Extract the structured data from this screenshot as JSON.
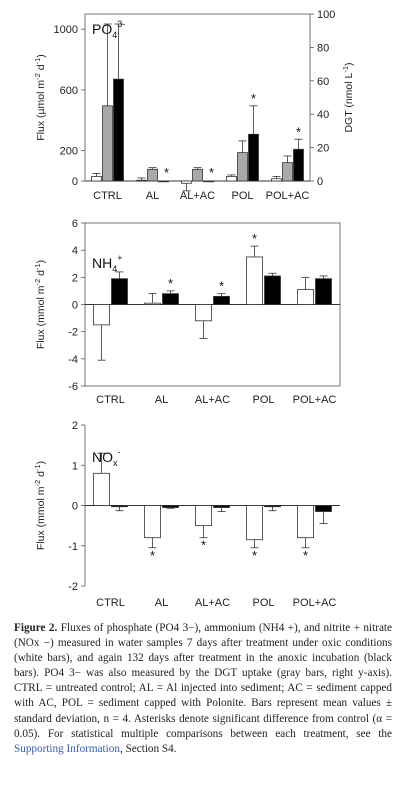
{
  "chart_data": [
    {
      "type": "bar",
      "id": "po4",
      "title": "PO4 3-",
      "title_base": "PO",
      "title_sub": "4",
      "title_sup": "3-",
      "categories": [
        "CTRL",
        "AL",
        "AL+AC",
        "POL",
        "POL+AC"
      ],
      "ylabel": "Flux (µmol m-2 d-1)",
      "ylabel_parts": [
        "Flux (µmol m",
        "-2",
        " d",
        "-1",
        ")"
      ],
      "ylim": [
        0,
        1100
      ],
      "yticks": [
        0,
        200,
        600,
        1000
      ],
      "y2label": "DGT (nmol L-1)",
      "y2label_parts": [
        "DGT (nmol L",
        "-1",
        ")"
      ],
      "y2lim": [
        0,
        100
      ],
      "y2ticks": [
        0,
        20,
        40,
        60,
        80,
        100
      ],
      "series": [
        {
          "values": [
            30,
            5,
            -15,
            30,
            15
          ],
          "errors": [
            20,
            15,
            50,
            10,
            15
          ],
          "color": "#ffffff",
          "axis": "left"
        },
        {
          "values": [
            45,
            7,
            7,
            17,
            11
          ],
          "errors": [
            49,
            1,
            1,
            7,
            4
          ],
          "color": "#a9a9a9",
          "axis": "right"
        },
        {
          "values": [
            61,
            0,
            0,
            28,
            19
          ],
          "errors": [
            33,
            0,
            0,
            17,
            6
          ],
          "color": "#000000",
          "axis": "right"
        }
      ],
      "asterisks": [
        {
          "category": 1,
          "series": 2
        },
        {
          "category": 2,
          "series": 2
        },
        {
          "category": 3,
          "series": 2
        },
        {
          "category": 4,
          "series": 2
        }
      ]
    },
    {
      "type": "bar",
      "id": "nh4",
      "title": "NH4+",
      "title_base": "NH",
      "title_sub": "4",
      "title_sup": "+",
      "categories": [
        "CTRL",
        "AL",
        "AL+AC",
        "POL",
        "POL+AC"
      ],
      "ylabel": "Flux (mmol m-2 d-1)",
      "ylabel_parts": [
        "Flux (mmol m",
        "-2",
        " d",
        "-1",
        ")"
      ],
      "ylim": [
        -6,
        6
      ],
      "yticks": [
        -6,
        -4,
        -2,
        0,
        2,
        4,
        6
      ],
      "series": [
        {
          "values": [
            -1.5,
            0.1,
            -1.2,
            3.5,
            1.1
          ],
          "errors": [
            2.6,
            0.7,
            1.3,
            0.8,
            0.9
          ],
          "color": "#ffffff"
        },
        {
          "values": [
            1.9,
            0.8,
            0.6,
            2.1,
            1.9
          ],
          "errors": [
            0.5,
            0.2,
            0.2,
            0.2,
            0.2
          ],
          "color": "#000000"
        }
      ],
      "asterisks": [
        {
          "category": 1,
          "series": 1
        },
        {
          "category": 2,
          "series": 1
        },
        {
          "category": 3,
          "series": 0
        }
      ]
    },
    {
      "type": "bar",
      "id": "nox",
      "title": "NOx-",
      "title_base": "NO",
      "title_sub": "x",
      "title_sup": "-",
      "categories": [
        "CTRL",
        "AL",
        "AL+AC",
        "POL",
        "POL+AC"
      ],
      "ylabel": "Flux (mmol m-2 d-1)",
      "ylabel_parts": [
        "Flux (mmol m",
        "-2",
        " d",
        "-1",
        ")"
      ],
      "ylim": [
        -2,
        2
      ],
      "yticks": [
        -2,
        -1,
        0,
        1,
        2
      ],
      "series": [
        {
          "values": [
            0.8,
            -0.8,
            -0.5,
            -0.85,
            -0.8
          ],
          "errors": [
            0.5,
            0.25,
            0.3,
            0.2,
            0.25
          ],
          "color": "#ffffff"
        },
        {
          "values": [
            -0.03,
            -0.05,
            -0.05,
            -0.03,
            -0.15
          ],
          "errors": [
            0.1,
            0.02,
            0.1,
            0.1,
            0.3
          ],
          "color": "#000000"
        }
      ],
      "asterisks": [
        {
          "category": 1,
          "series": 0
        },
        {
          "category": 2,
          "series": 0
        },
        {
          "category": 3,
          "series": 0
        },
        {
          "category": 4,
          "series": 0
        }
      ]
    }
  ],
  "caption": {
    "label": "Figure 2.",
    "text": "Fluxes of phosphate (PO4 3−), ammonium (NH4 +), and nitrite + nitrate (NOx −) measured in water samples 7 days after treatment under oxic conditions (white bars), and again 132 days after treatment in the anoxic incubation (black bars). PO4 3− was also measured by the DGT uptake (gray bars, right y-axis). CTRL = untreated control; AL = Al injected into sediment; AC = sediment capped with AC, POL = sediment capped with Polonite. Bars represent mean values ± standard deviation, n = 4. Asterisks denote significant difference from control (α = 0.05). For statistical multiple comparisons between each treatment, see the",
    "link": "Supporting Information",
    "tail": ", Section S4."
  }
}
